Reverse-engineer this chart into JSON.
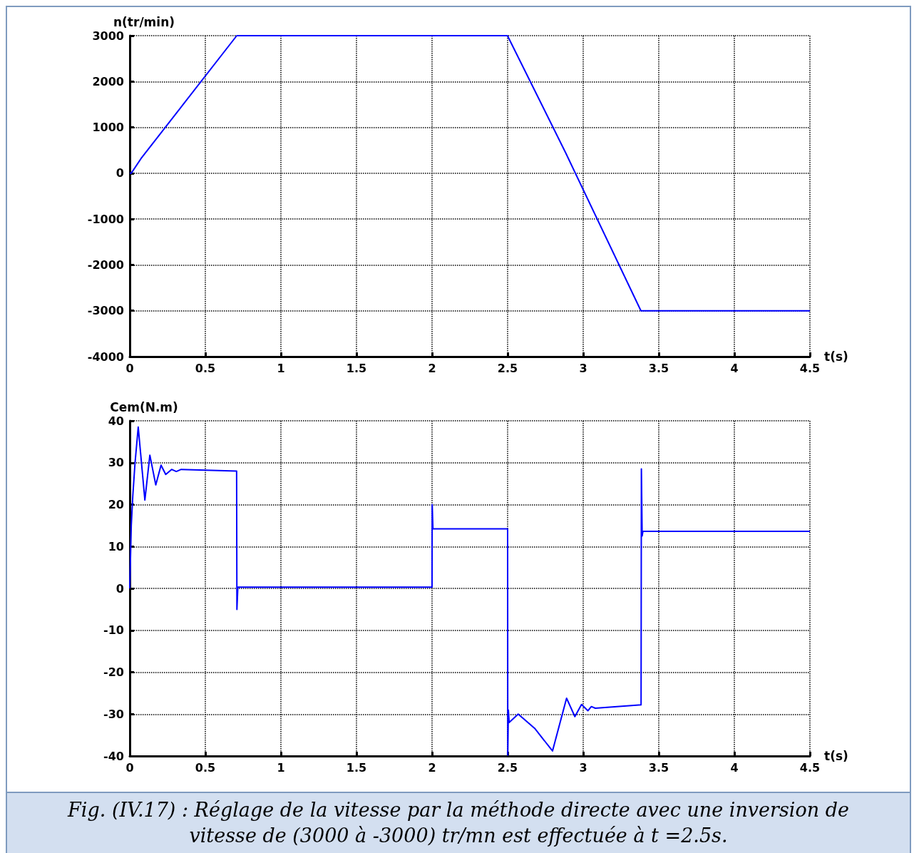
{
  "chart_data": [
    {
      "type": "line",
      "ylabel": "n(tr/min)",
      "xlabel": "t(s)",
      "color": "#0000ff",
      "line_style": "solid",
      "grid": true,
      "x": [
        0,
        0.01,
        0.074,
        0.708,
        2.499,
        2.884,
        3.382,
        4.5
      ],
      "values": [
        0,
        0,
        317,
        3000,
        3000,
        444,
        -3000,
        -3000
      ],
      "xlim": [
        0,
        4.5
      ],
      "xticks": [
        0,
        0.5,
        1,
        1.5,
        2,
        2.5,
        3,
        3.5,
        4,
        4.5
      ],
      "ylim": [
        -4000,
        3000
      ],
      "yticks": [
        -4000,
        -3000,
        -2000,
        -1000,
        0,
        1000,
        2000,
        3000
      ]
    },
    {
      "type": "line",
      "ylabel": "Cem(N.m)",
      "xlabel": "t(s)",
      "color": "#0000ff",
      "line_style": "solid",
      "grid": true,
      "x": [
        0,
        0.01,
        0.02,
        0.035,
        0.056,
        0.1,
        0.133,
        0.172,
        0.207,
        0.238,
        0.277,
        0.308,
        0.34,
        0.707,
        0.709,
        0.715,
        2.0,
        2.001,
        2.006,
        2.5,
        2.501,
        2.505,
        2.51,
        2.57,
        2.679,
        2.797,
        2.89,
        2.945,
        2.989,
        3.031,
        3.054,
        3.08,
        3.383,
        3.385,
        3.39,
        3.395,
        4.5
      ],
      "values": [
        0,
        15,
        22,
        30,
        38.5,
        21.1,
        31.8,
        24.7,
        29.4,
        27.2,
        28.4,
        27.9,
        28.4,
        28,
        -5,
        0.3,
        0.3,
        20,
        14.2,
        14.2,
        -39.8,
        -29,
        -32,
        -30,
        -33.4,
        -38.8,
        -26.2,
        -30.6,
        -27.7,
        -29.2,
        -28.2,
        -28.6,
        -27.8,
        28.5,
        12.5,
        13.6,
        13.6
      ],
      "xlim": [
        0,
        4.5
      ],
      "xticks": [
        0,
        0.5,
        1,
        1.5,
        2,
        2.5,
        3,
        3.5,
        4,
        4.5
      ],
      "ylim": [
        -40,
        40
      ],
      "yticks": [
        -40,
        -30,
        -20,
        -10,
        0,
        10,
        20,
        30,
        40
      ],
      "annotations": [
        "Fig. (IV.17) : Réglage de la vitesse par la méthode directe avec une inversion de vitesse de (3000 à -3000) tr/mn est effectuée à t =2.5s."
      ]
    }
  ]
}
